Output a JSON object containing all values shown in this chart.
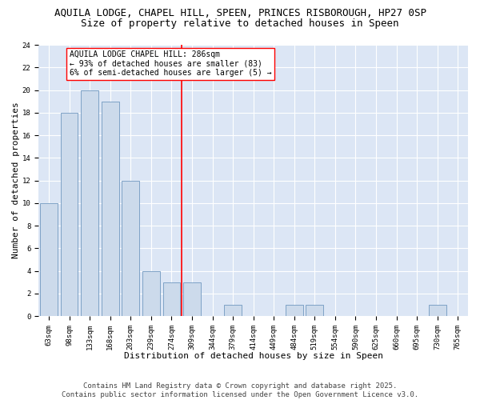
{
  "title_line1": "AQUILA LODGE, CHAPEL HILL, SPEEN, PRINCES RISBOROUGH, HP27 0SP",
  "title_line2": "Size of property relative to detached houses in Speen",
  "xlabel": "Distribution of detached houses by size in Speen",
  "ylabel": "Number of detached properties",
  "categories": [
    "63sqm",
    "98sqm",
    "133sqm",
    "168sqm",
    "203sqm",
    "239sqm",
    "274sqm",
    "309sqm",
    "344sqm",
    "379sqm",
    "414sqm",
    "449sqm",
    "484sqm",
    "519sqm",
    "554sqm",
    "590sqm",
    "625sqm",
    "660sqm",
    "695sqm",
    "730sqm",
    "765sqm"
  ],
  "values": [
    10,
    18,
    20,
    19,
    12,
    4,
    3,
    3,
    0,
    1,
    0,
    0,
    1,
    1,
    0,
    0,
    0,
    0,
    0,
    1,
    0
  ],
  "bar_color": "#ccdaeb",
  "bar_edge_color": "#7098c0",
  "vline_x": 6.5,
  "annotation_text": "AQUILA LODGE CHAPEL HILL: 286sqm\n← 93% of detached houses are smaller (83)\n6% of semi-detached houses are larger (5) →",
  "annotation_box_color": "white",
  "annotation_box_edge_color": "red",
  "vline_color": "red",
  "ylim": [
    0,
    24
  ],
  "yticks": [
    0,
    2,
    4,
    6,
    8,
    10,
    12,
    14,
    16,
    18,
    20,
    22,
    24
  ],
  "background_color": "#dce6f5",
  "grid_color": "white",
  "footer_text": "Contains HM Land Registry data © Crown copyright and database right 2025.\nContains public sector information licensed under the Open Government Licence v3.0.",
  "title_fontsize": 9,
  "subtitle_fontsize": 9,
  "tick_fontsize": 6.5,
  "xlabel_fontsize": 8,
  "ylabel_fontsize": 8,
  "annotation_fontsize": 7,
  "footer_fontsize": 6.5
}
